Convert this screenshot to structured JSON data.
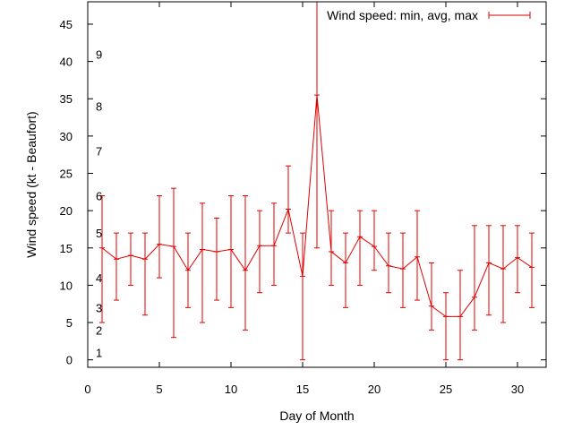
{
  "chart_data": {
    "type": "line",
    "title": "",
    "xlabel": "Day of Month",
    "ylabel": "Wind speed (kt - Beaufort)",
    "xlim": [
      0,
      32
    ],
    "ylim": [
      -1,
      48
    ],
    "xticks": [
      "0",
      "5",
      "10",
      "15",
      "20",
      "25",
      "30"
    ],
    "yticks": [
      "0",
      "5",
      "10",
      "15",
      "20",
      "25",
      "30",
      "35",
      "40",
      "45"
    ],
    "grid": false,
    "legend_position": "top-right",
    "color": "#e00000",
    "beaufort_labels": [
      {
        "label": "1",
        "y": 1
      },
      {
        "label": "2",
        "y": 4
      },
      {
        "label": "3",
        "y": 7
      },
      {
        "label": "4",
        "y": 11
      },
      {
        "label": "5",
        "y": 17
      },
      {
        "label": "6",
        "y": 22
      },
      {
        "label": "7",
        "y": 28
      },
      {
        "label": "8",
        "y": 34
      },
      {
        "label": "9",
        "y": 41
      }
    ],
    "series": [
      {
        "name": "Wind speed: min, avg, max",
        "x": [
          1,
          2,
          3,
          4,
          5,
          6,
          7,
          8,
          9,
          10,
          11,
          12,
          13,
          14,
          15,
          16,
          17,
          18,
          19,
          20,
          21,
          22,
          23,
          24,
          25,
          26,
          27,
          28,
          29,
          30,
          31
        ],
        "avg": [
          15,
          13.5,
          14,
          13.5,
          15.5,
          15.2,
          12,
          14.8,
          14.5,
          14.8,
          12,
          15.3,
          15.3,
          20.2,
          11.2,
          35.5,
          14.5,
          13,
          16.5,
          15.2,
          12.6,
          12.2,
          13.8,
          7.2,
          5.8,
          5.8,
          8.4,
          13,
          12.2,
          13.7,
          12.4
        ],
        "min": [
          5,
          8,
          10,
          6,
          11,
          3,
          7,
          5,
          8,
          7,
          4,
          9,
          10,
          17,
          0,
          15,
          10,
          7,
          10,
          12,
          9,
          7,
          8,
          4,
          0,
          0,
          4,
          6,
          5,
          9,
          7
        ],
        "max": [
          22,
          17,
          17,
          17,
          22,
          23,
          17,
          21,
          19,
          22,
          22,
          20,
          21,
          26,
          17,
          48,
          20,
          17,
          20,
          20,
          17,
          17,
          20,
          13,
          9,
          12,
          18,
          18,
          18,
          18,
          17
        ]
      }
    ]
  }
}
